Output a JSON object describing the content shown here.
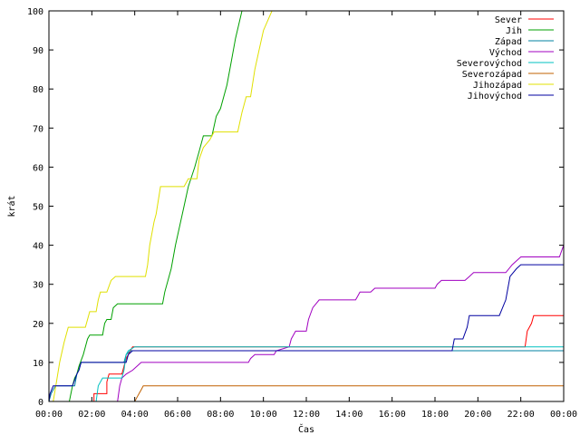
{
  "chart_data": {
    "type": "line",
    "step": true,
    "xlabel": "Čas",
    "ylabel": "krát",
    "xlim": [
      0,
      24
    ],
    "ylim": [
      0,
      100
    ],
    "x_ticks": [
      {
        "v": 0,
        "label": "00:00"
      },
      {
        "v": 2,
        "label": "02:00"
      },
      {
        "v": 4,
        "label": "04:00"
      },
      {
        "v": 6,
        "label": "06:00"
      },
      {
        "v": 8,
        "label": "08:00"
      },
      {
        "v": 10,
        "label": "10:00"
      },
      {
        "v": 12,
        "label": "12:00"
      },
      {
        "v": 14,
        "label": "14:00"
      },
      {
        "v": 16,
        "label": "16:00"
      },
      {
        "v": 18,
        "label": "18:00"
      },
      {
        "v": 20,
        "label": "20:00"
      },
      {
        "v": 22,
        "label": "22:00"
      },
      {
        "v": 24,
        "label": "00:00"
      }
    ],
    "y_ticks": [
      0,
      10,
      20,
      30,
      40,
      50,
      60,
      70,
      80,
      90,
      100
    ],
    "grid": false,
    "legend_position": "top-right",
    "series": [
      {
        "name": "Sever",
        "color": "#ff0000",
        "points": [
          [
            2.1,
            0
          ],
          [
            2.1,
            2
          ],
          [
            2.7,
            2
          ],
          [
            2.7,
            5
          ],
          [
            2.8,
            7
          ],
          [
            3.4,
            7
          ],
          [
            3.5,
            9
          ],
          [
            3.6,
            11
          ],
          [
            3.8,
            13
          ],
          [
            3.9,
            14
          ],
          [
            22.2,
            14
          ],
          [
            22.3,
            18
          ],
          [
            22.5,
            20
          ],
          [
            22.6,
            22
          ],
          [
            24,
            22
          ]
        ]
      },
      {
        "name": "Jih",
        "color": "#00a000",
        "points": [
          [
            0.95,
            0
          ],
          [
            1.1,
            4
          ],
          [
            1.2,
            6
          ],
          [
            1.3,
            7
          ],
          [
            1.4,
            9
          ],
          [
            1.6,
            12
          ],
          [
            1.8,
            16
          ],
          [
            1.9,
            17
          ],
          [
            2.5,
            17
          ],
          [
            2.6,
            20
          ],
          [
            2.7,
            21
          ],
          [
            2.9,
            21
          ],
          [
            3.0,
            24
          ],
          [
            3.2,
            25
          ],
          [
            5.3,
            25
          ],
          [
            5.4,
            28
          ],
          [
            5.7,
            34
          ],
          [
            5.9,
            40
          ],
          [
            6.3,
            50
          ],
          [
            6.5,
            55
          ],
          [
            6.8,
            60
          ],
          [
            7.0,
            64
          ],
          [
            7.2,
            68
          ],
          [
            7.6,
            68
          ],
          [
            7.8,
            73
          ],
          [
            8.0,
            75
          ],
          [
            8.3,
            81
          ],
          [
            8.5,
            87
          ],
          [
            8.7,
            93
          ],
          [
            9.0,
            100
          ]
        ]
      },
      {
        "name": "Západ",
        "color": "#0080a0",
        "points": [
          [
            0,
            0
          ],
          [
            0.1,
            2
          ],
          [
            0.3,
            4
          ],
          [
            1.2,
            4
          ],
          [
            1.3,
            7
          ],
          [
            1.4,
            8
          ],
          [
            1.5,
            10
          ],
          [
            3.5,
            10
          ],
          [
            3.6,
            12
          ],
          [
            3.8,
            13
          ],
          [
            24,
            13
          ]
        ]
      },
      {
        "name": "Východ",
        "color": "#a000c0",
        "points": [
          [
            3.2,
            0
          ],
          [
            3.3,
            4
          ],
          [
            3.4,
            6
          ],
          [
            3.6,
            7
          ],
          [
            3.9,
            8
          ],
          [
            4.1,
            9
          ],
          [
            4.3,
            10
          ],
          [
            9.3,
            10
          ],
          [
            9.4,
            11
          ],
          [
            9.6,
            12
          ],
          [
            10.5,
            12
          ],
          [
            10.6,
            13
          ],
          [
            11.2,
            14
          ],
          [
            11.3,
            16
          ],
          [
            11.5,
            18
          ],
          [
            12.0,
            18
          ],
          [
            12.1,
            21
          ],
          [
            12.3,
            24
          ],
          [
            12.6,
            26
          ],
          [
            14.3,
            26
          ],
          [
            14.4,
            27
          ],
          [
            14.5,
            28
          ],
          [
            15.0,
            28
          ],
          [
            15.2,
            29
          ],
          [
            18.0,
            29
          ],
          [
            18.1,
            30
          ],
          [
            18.3,
            31
          ],
          [
            19.4,
            31
          ],
          [
            19.6,
            32
          ],
          [
            19.8,
            33
          ],
          [
            21.3,
            33
          ],
          [
            21.6,
            35
          ],
          [
            22.0,
            37
          ],
          [
            23.8,
            37
          ],
          [
            24,
            40
          ]
        ]
      },
      {
        "name": "Severovýchod",
        "color": "#00c0c0",
        "points": [
          [
            2.2,
            0
          ],
          [
            2.3,
            4
          ],
          [
            2.5,
            6
          ],
          [
            3.4,
            6
          ],
          [
            3.5,
            8
          ],
          [
            3.6,
            12
          ],
          [
            3.7,
            13
          ],
          [
            4.0,
            14
          ],
          [
            24,
            14
          ]
        ]
      },
      {
        "name": "Severozápad",
        "color": "#c06000",
        "points": [
          [
            4.0,
            0
          ],
          [
            4.1,
            1
          ],
          [
            4.2,
            2
          ],
          [
            4.3,
            3
          ],
          [
            4.4,
            4
          ],
          [
            24,
            4
          ]
        ]
      },
      {
        "name": "Jihozápad",
        "color": "#e0e000",
        "points": [
          [
            0.2,
            0
          ],
          [
            0.35,
            5
          ],
          [
            0.5,
            10
          ],
          [
            0.7,
            15
          ],
          [
            0.9,
            19
          ],
          [
            1.7,
            19
          ],
          [
            1.9,
            23
          ],
          [
            2.2,
            23
          ],
          [
            2.3,
            26
          ],
          [
            2.4,
            28
          ],
          [
            2.7,
            28
          ],
          [
            2.9,
            31
          ],
          [
            3.1,
            32
          ],
          [
            4.5,
            32
          ],
          [
            4.6,
            35
          ],
          [
            4.7,
            40
          ],
          [
            4.9,
            46
          ],
          [
            5.0,
            48
          ],
          [
            5.2,
            55
          ],
          [
            6.3,
            55
          ],
          [
            6.5,
            57
          ],
          [
            6.9,
            57
          ],
          [
            7.0,
            62
          ],
          [
            7.2,
            65
          ],
          [
            7.5,
            67
          ],
          [
            7.7,
            69
          ],
          [
            8.8,
            69
          ],
          [
            9.0,
            74
          ],
          [
            9.2,
            78
          ],
          [
            9.4,
            78
          ],
          [
            9.6,
            85
          ],
          [
            9.8,
            90
          ],
          [
            10.0,
            95
          ],
          [
            10.4,
            100
          ]
        ]
      },
      {
        "name": "Jihovýchod",
        "color": "#0000a0",
        "points": [
          [
            0,
            0
          ],
          [
            0.05,
            2
          ],
          [
            0.2,
            4
          ],
          [
            1.1,
            4
          ],
          [
            1.3,
            7
          ],
          [
            1.4,
            8
          ],
          [
            1.5,
            10
          ],
          [
            3.6,
            10
          ],
          [
            3.7,
            12
          ],
          [
            3.9,
            13
          ],
          [
            18.8,
            13
          ],
          [
            18.9,
            16
          ],
          [
            19.3,
            16
          ],
          [
            19.5,
            19
          ],
          [
            19.6,
            22
          ],
          [
            21.0,
            22
          ],
          [
            21.3,
            26
          ],
          [
            21.5,
            32
          ],
          [
            21.8,
            34
          ],
          [
            22.0,
            35
          ],
          [
            24,
            35
          ]
        ]
      }
    ]
  }
}
